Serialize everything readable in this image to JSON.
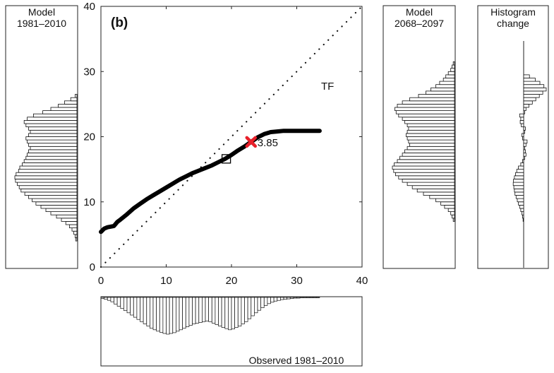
{
  "chart_data": {
    "type": "line",
    "panel_label": "(b)",
    "main": {
      "xlim": [
        0,
        40
      ],
      "ylim": [
        0,
        40
      ],
      "xticks": [
        "0",
        "10",
        "20",
        "30",
        "40"
      ],
      "yticks": [
        "0",
        "10",
        "20",
        "30",
        "40"
      ],
      "tf_label": "TF",
      "marker_label": "3.85",
      "marker_point": [
        23.0,
        19.2
      ],
      "square_point": [
        19.2,
        16.6
      ],
      "identity_line": {
        "name": "1:1",
        "x": [
          0,
          40
        ],
        "y": [
          0,
          40
        ]
      },
      "transfer_function": {
        "name": "TF",
        "x": [
          0,
          0.5,
          1,
          2,
          2.5,
          3,
          4,
          5,
          6,
          7,
          8,
          9,
          10,
          11,
          12,
          13,
          14,
          15,
          16,
          17,
          18,
          19,
          20,
          21,
          22,
          23,
          24,
          25,
          26,
          27,
          28,
          29,
          30,
          31,
          32,
          33.5
        ],
        "y": [
          5.4,
          5.9,
          6.1,
          6.3,
          6.9,
          7.3,
          8.1,
          9.0,
          9.7,
          10.4,
          11.0,
          11.6,
          12.2,
          12.8,
          13.4,
          13.9,
          14.4,
          14.8,
          15.2,
          15.6,
          16.1,
          16.6,
          17.2,
          17.9,
          18.5,
          19.2,
          19.9,
          20.4,
          20.7,
          20.8,
          20.9,
          20.9,
          20.9,
          20.9,
          20.9,
          20.9
        ]
      }
    },
    "model_hist_hist": {
      "title": [
        "Model",
        "1981–2010"
      ],
      "bins": [
        4,
        4.5,
        5,
        5.5,
        6,
        6.5,
        7,
        7.5,
        8,
        8.5,
        9,
        9.5,
        10,
        10.5,
        11,
        11.5,
        12,
        12.5,
        13,
        13.5,
        14,
        14.5,
        15,
        15.5,
        16,
        16.5,
        17,
        17.5,
        18,
        18.5,
        19,
        19.5,
        20,
        20.5,
        21,
        21.5,
        22,
        22.5,
        23,
        23.5,
        24,
        24.5,
        25,
        25.5,
        26
      ],
      "values": [
        2,
        3,
        5,
        8,
        12,
        18,
        25,
        33,
        42,
        50,
        58,
        66,
        72,
        78,
        84,
        90,
        93,
        96,
        99,
        100,
        98,
        94,
        92,
        88,
        85,
        82,
        80,
        78,
        75,
        78,
        80,
        82,
        78,
        75,
        78,
        82,
        85,
        80,
        70,
        55,
        42,
        30,
        20,
        10,
        3
      ]
    },
    "model_future_hist": {
      "title": [
        "Model",
        "2068–2097"
      ],
      "bins": [
        7,
        7.5,
        8,
        8.5,
        9,
        9.5,
        10,
        10.5,
        11,
        11.5,
        12,
        12.5,
        13,
        13.5,
        14,
        14.5,
        15,
        15.5,
        16,
        16.5,
        17,
        17.5,
        18,
        18.5,
        19,
        19.5,
        20,
        20.5,
        21,
        21.5,
        22,
        22.5,
        23,
        23.5,
        24,
        24.5,
        25,
        25.5,
        26,
        26.5,
        27,
        27.5,
        28,
        28.5,
        29,
        29.5,
        30,
        30.5,
        31
      ],
      "values": [
        2,
        4,
        6,
        10,
        16,
        22,
        30,
        40,
        50,
        60,
        68,
        76,
        84,
        90,
        95,
        98,
        100,
        97,
        92,
        88,
        84,
        80,
        76,
        72,
        74,
        76,
        78,
        76,
        74,
        76,
        80,
        84,
        90,
        94,
        96,
        92,
        84,
        72,
        58,
        46,
        38,
        30,
        24,
        18,
        14,
        10,
        6,
        4,
        2
      ]
    },
    "hist_change": {
      "title": [
        "Histogram",
        "change"
      ],
      "bins": [
        7,
        7.5,
        8,
        8.5,
        9,
        9.5,
        10,
        10.5,
        11,
        11.5,
        12,
        12.5,
        13,
        13.5,
        14,
        14.5,
        15,
        15.5,
        16,
        16.5,
        17,
        17.5,
        18,
        18.5,
        19,
        19.5,
        20,
        20.5,
        21,
        21.5,
        22,
        22.5,
        23,
        23.5,
        24,
        24.5,
        25,
        25.5,
        26,
        26.5,
        27,
        27.5,
        28,
        28.5,
        29
      ],
      "values": [
        -2,
        -4,
        -6,
        -10,
        -14,
        -18,
        -22,
        -26,
        -30,
        -32,
        -34,
        -36,
        -35,
        -32,
        -28,
        -24,
        -18,
        -10,
        -4,
        4,
        8,
        6,
        4,
        8,
        12,
        -4,
        -6,
        4,
        6,
        -8,
        -12,
        -10,
        -14,
        4,
        8,
        18,
        30,
        42,
        54,
        66,
        78,
        70,
        56,
        40,
        20
      ]
    },
    "observed_hist": {
      "title": "Observed 1981–2010",
      "bins": [
        0,
        0.5,
        1,
        1.5,
        2,
        2.5,
        3,
        3.5,
        4,
        4.5,
        5,
        5.5,
        6,
        6.5,
        7,
        7.5,
        8,
        8.5,
        9,
        9.5,
        10,
        10.5,
        11,
        11.5,
        12,
        12.5,
        13,
        13.5,
        14,
        14.5,
        15,
        15.5,
        16,
        16.5,
        17,
        17.5,
        18,
        18.5,
        19,
        19.5,
        20,
        20.5,
        21,
        21.5,
        22,
        22.5,
        23,
        23.5,
        24,
        24.5,
        25,
        25.5,
        26,
        26.5,
        27,
        27.5,
        28,
        28.5,
        29,
        29.5,
        30,
        30.5,
        31,
        31.5,
        32,
        32.5,
        33
      ],
      "values": [
        3,
        5,
        8,
        12,
        18,
        24,
        30,
        36,
        42,
        48,
        54,
        60,
        66,
        72,
        78,
        84,
        88,
        92,
        95,
        98,
        100,
        98,
        96,
        92,
        88,
        84,
        80,
        76,
        72,
        70,
        68,
        66,
        64,
        66,
        70,
        74,
        78,
        82,
        85,
        88,
        86,
        82,
        78,
        72,
        66,
        58,
        50,
        42,
        35,
        28,
        22,
        17,
        13,
        10,
        8,
        6,
        5,
        4,
        3,
        2,
        2,
        1,
        1,
        1,
        1,
        1,
        1
      ]
    }
  }
}
